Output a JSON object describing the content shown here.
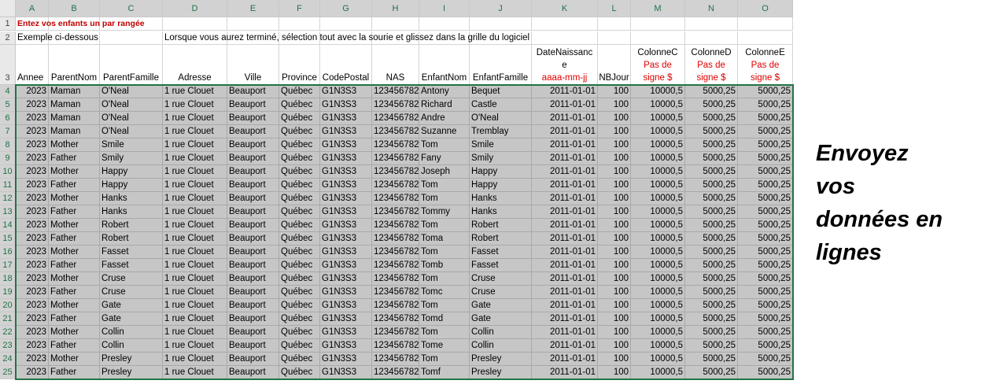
{
  "sheet": {
    "column_letters": [
      "A",
      "B",
      "C",
      "D",
      "E",
      "F",
      "G",
      "H",
      "I",
      "J",
      "K",
      "L",
      "M",
      "N",
      "O"
    ],
    "row_numbers": [
      1,
      2,
      3,
      4,
      5,
      6,
      7,
      8,
      9,
      10,
      11,
      12,
      13,
      14,
      15,
      16,
      17,
      18,
      19,
      20,
      21,
      22,
      23,
      24,
      25
    ],
    "instruction": "Entez vos enfants un par rangée",
    "example_label": "Exemple ci-dessous",
    "example_note": "Lorsque vous aurez terminé, sélection tout avec la sourie et glissez dans la grille du logiciel",
    "header": [
      {
        "label": [
          "Annee"
        ]
      },
      {
        "label": [
          "ParentNom"
        ]
      },
      {
        "label": [
          "ParentFamille"
        ]
      },
      {
        "label": [
          "Adresse"
        ]
      },
      {
        "label": [
          "Ville"
        ]
      },
      {
        "label": [
          "Province"
        ]
      },
      {
        "label": [
          "CodePostal"
        ]
      },
      {
        "label": [
          "NAS"
        ]
      },
      {
        "label": [
          "EnfantNom"
        ]
      },
      {
        "label": [
          "EnfantFamille"
        ]
      },
      {
        "label": [
          "DateNaissanc",
          "e"
        ],
        "hint": [
          "aaaa-mm-jj"
        ]
      },
      {
        "label": [
          "NBJour"
        ]
      },
      {
        "label": [
          "ColonneC"
        ],
        "hint": [
          "Pas de",
          "signe $"
        ]
      },
      {
        "label": [
          "ColonneD"
        ],
        "hint": [
          "Pas de",
          "signe $"
        ]
      },
      {
        "label": [
          "ColonneE"
        ],
        "hint": [
          "Pas de",
          "signe $"
        ]
      }
    ],
    "rows": [
      [
        "2023",
        "Maman",
        "O'Neal",
        "1 rue Clouet",
        "Beauport",
        "Québec",
        "G1N3S3",
        "123456782",
        "Antony",
        "Bequet",
        "2011-01-01",
        "100",
        "10000,5",
        "5000,25",
        "5000,25"
      ],
      [
        "2023",
        "Maman",
        "O'Neal",
        "1 rue Clouet",
        "Beauport",
        "Québec",
        "G1N3S3",
        "123456782",
        "Richard",
        "Castle",
        "2011-01-01",
        "100",
        "10000,5",
        "5000,25",
        "5000,25"
      ],
      [
        "2023",
        "Maman",
        "O'Neal",
        "1 rue Clouet",
        "Beauport",
        "Québec",
        "G1N3S3",
        "123456782",
        "Andre",
        "O'Neal",
        "2011-01-01",
        "100",
        "10000,5",
        "5000,25",
        "5000,25"
      ],
      [
        "2023",
        "Maman",
        "O'Neal",
        "1 rue Clouet",
        "Beauport",
        "Québec",
        "G1N3S3",
        "123456782",
        "Suzanne",
        "Tremblay",
        "2011-01-01",
        "100",
        "10000,5",
        "5000,25",
        "5000,25"
      ],
      [
        "2023",
        "Mother",
        "Smile",
        "1 rue Clouet",
        "Beauport",
        "Québec",
        "G1N3S3",
        "123456782",
        "Tom",
        "Smile",
        "2011-01-01",
        "100",
        "10000,5",
        "5000,25",
        "5000,25"
      ],
      [
        "2023",
        "Father",
        "Smily",
        "1 rue Clouet",
        "Beauport",
        "Québec",
        "G1N3S3",
        "123456782",
        "Fany",
        "Smily",
        "2011-01-01",
        "100",
        "10000,5",
        "5000,25",
        "5000,25"
      ],
      [
        "2023",
        "Mother",
        "Happy",
        "1 rue Clouet",
        "Beauport",
        "Québec",
        "G1N3S3",
        "123456782",
        "Joseph",
        "Happy",
        "2011-01-01",
        "100",
        "10000,5",
        "5000,25",
        "5000,25"
      ],
      [
        "2023",
        "Father",
        "Happy",
        "1 rue Clouet",
        "Beauport",
        "Québec",
        "G1N3S3",
        "123456782",
        "Tom",
        "Happy",
        "2011-01-01",
        "100",
        "10000,5",
        "5000,25",
        "5000,25"
      ],
      [
        "2023",
        "Mother",
        "Hanks",
        "1 rue Clouet",
        "Beauport",
        "Québec",
        "G1N3S3",
        "123456782",
        "Tom",
        "Hanks",
        "2011-01-01",
        "100",
        "10000,5",
        "5000,25",
        "5000,25"
      ],
      [
        "2023",
        "Father",
        "Hanks",
        "1 rue Clouet",
        "Beauport",
        "Québec",
        "G1N3S3",
        "123456782",
        "Tommy",
        "Hanks",
        "2011-01-01",
        "100",
        "10000,5",
        "5000,25",
        "5000,25"
      ],
      [
        "2023",
        "Mother",
        "Robert",
        "1 rue Clouet",
        "Beauport",
        "Québec",
        "G1N3S3",
        "123456782",
        "Tom",
        "Robert",
        "2011-01-01",
        "100",
        "10000,5",
        "5000,25",
        "5000,25"
      ],
      [
        "2023",
        "Father",
        "Robert",
        "1 rue Clouet",
        "Beauport",
        "Québec",
        "G1N3S3",
        "123456782",
        "Toma",
        "Robert",
        "2011-01-01",
        "100",
        "10000,5",
        "5000,25",
        "5000,25"
      ],
      [
        "2023",
        "Mother",
        "Fasset",
        "1 rue Clouet",
        "Beauport",
        "Québec",
        "G1N3S3",
        "123456782",
        "Tom",
        "Fasset",
        "2011-01-01",
        "100",
        "10000,5",
        "5000,25",
        "5000,25"
      ],
      [
        "2023",
        "Father",
        "Fasset",
        "1 rue Clouet",
        "Beauport",
        "Québec",
        "G1N3S3",
        "123456782",
        "Tomb",
        "Fasset",
        "2011-01-01",
        "100",
        "10000,5",
        "5000,25",
        "5000,25"
      ],
      [
        "2023",
        "Mother",
        "Cruse",
        "1 rue Clouet",
        "Beauport",
        "Québec",
        "G1N3S3",
        "123456782",
        "Tom",
        "Cruse",
        "2011-01-01",
        "100",
        "10000,5",
        "5000,25",
        "5000,25"
      ],
      [
        "2023",
        "Father",
        "Cruse",
        "1 rue Clouet",
        "Beauport",
        "Québec",
        "G1N3S3",
        "123456782",
        "Tomc",
        "Cruse",
        "2011-01-01",
        "100",
        "10000,5",
        "5000,25",
        "5000,25"
      ],
      [
        "2023",
        "Mother",
        "Gate",
        "1 rue Clouet",
        "Beauport",
        "Québec",
        "G1N3S3",
        "123456782",
        "Tom",
        "Gate",
        "2011-01-01",
        "100",
        "10000,5",
        "5000,25",
        "5000,25"
      ],
      [
        "2023",
        "Father",
        "Gate",
        "1 rue Clouet",
        "Beauport",
        "Québec",
        "G1N3S3",
        "123456782",
        "Tomd",
        "Gate",
        "2011-01-01",
        "100",
        "10000,5",
        "5000,25",
        "5000,25"
      ],
      [
        "2023",
        "Mother",
        "Collin",
        "1 rue Clouet",
        "Beauport",
        "Québec",
        "G1N3S3",
        "123456782",
        "Tom",
        "Collin",
        "2011-01-01",
        "100",
        "10000,5",
        "5000,25",
        "5000,25"
      ],
      [
        "2023",
        "Father",
        "Collin",
        "1 rue Clouet",
        "Beauport",
        "Québec",
        "G1N3S3",
        "123456782",
        "Tome",
        "Collin",
        "2011-01-01",
        "100",
        "10000,5",
        "5000,25",
        "5000,25"
      ],
      [
        "2023",
        "Mother",
        "Presley",
        "1 rue Clouet",
        "Beauport",
        "Québec",
        "G1N3S3",
        "123456782",
        "Tom",
        "Presley",
        "2011-01-01",
        "100",
        "10000,5",
        "5000,25",
        "5000,25"
      ],
      [
        "2023",
        "Father",
        "Presley",
        "1 rue Clouet",
        "Beauport",
        "Québec",
        "G1N3S3",
        "123456782",
        "Tomf",
        "Presley",
        "2011-01-01",
        "100",
        "10000,5",
        "5000,25",
        "5000,25"
      ]
    ]
  },
  "side_note": [
    "Envoyez",
    "vos",
    "données en",
    "lignes"
  ]
}
